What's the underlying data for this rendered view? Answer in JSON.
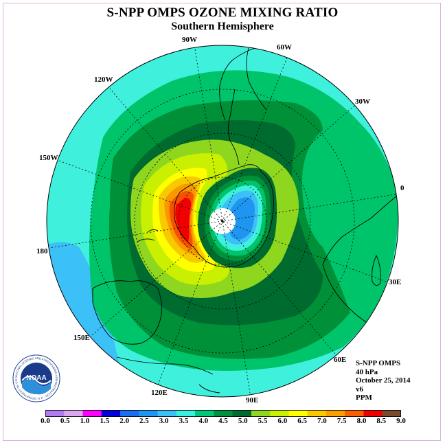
{
  "title": "S-NPP OMPS OZONE MIXING RATIO",
  "subtitle": "Southern Hemisphere",
  "longitude_labels": [
    "90W",
    "60W",
    "120W",
    "30W",
    "150W",
    "0",
    "180",
    "30E",
    "150E",
    "60E",
    "120E",
    "90E"
  ],
  "info": {
    "instrument": "S-NPP OMPS",
    "level": "40 hPa",
    "date": "October 25, 2014",
    "version": "v6",
    "units": "PPM"
  },
  "logo": {
    "text": "NOAA",
    "ring_text": "NATIONAL OCEANIC AND ATMOSPHERIC ADMINISTRATION · U.S. DEPARTMENT OF COMMERCE"
  },
  "colorbar": {
    "ticks": [
      "0.0",
      "0.5",
      "1.0",
      "1.5",
      "2.0",
      "2.5",
      "3.0",
      "3.5",
      "4.0",
      "4.5",
      "5.0",
      "5.5",
      "6.0",
      "6.5",
      "7.0",
      "7.5",
      "8.0",
      "8.5",
      "9.0"
    ],
    "colors": [
      "#b07cf0",
      "#d9a8f0",
      "#ff00ff",
      "#0000e0",
      "#1a6ef0",
      "#1e96f0",
      "#3cc0f8",
      "#3cf0e0",
      "#00c878",
      "#009040",
      "#006b30",
      "#90d820",
      "#c8f000",
      "#ffff00",
      "#f8c800",
      "#f8a000",
      "#f86000",
      "#f00000",
      "#7a4a2a"
    ]
  },
  "map_colors": {
    "c3_5": "#3ff0dc",
    "c3_0": "#3cc0f8",
    "c2_5": "#1e96f0",
    "c4_0": "#00c46a",
    "c4_5": "#009038",
    "c5_0": "#006b2e",
    "c5_5": "#8fd61f",
    "c6_0": "#c8f000",
    "c6_5": "#ffff00",
    "c7_0": "#f8c800",
    "c7_5": "#f89800",
    "c8_0": "#f85000",
    "c8_5": "#f00000",
    "pole": "#ffffff"
  }
}
